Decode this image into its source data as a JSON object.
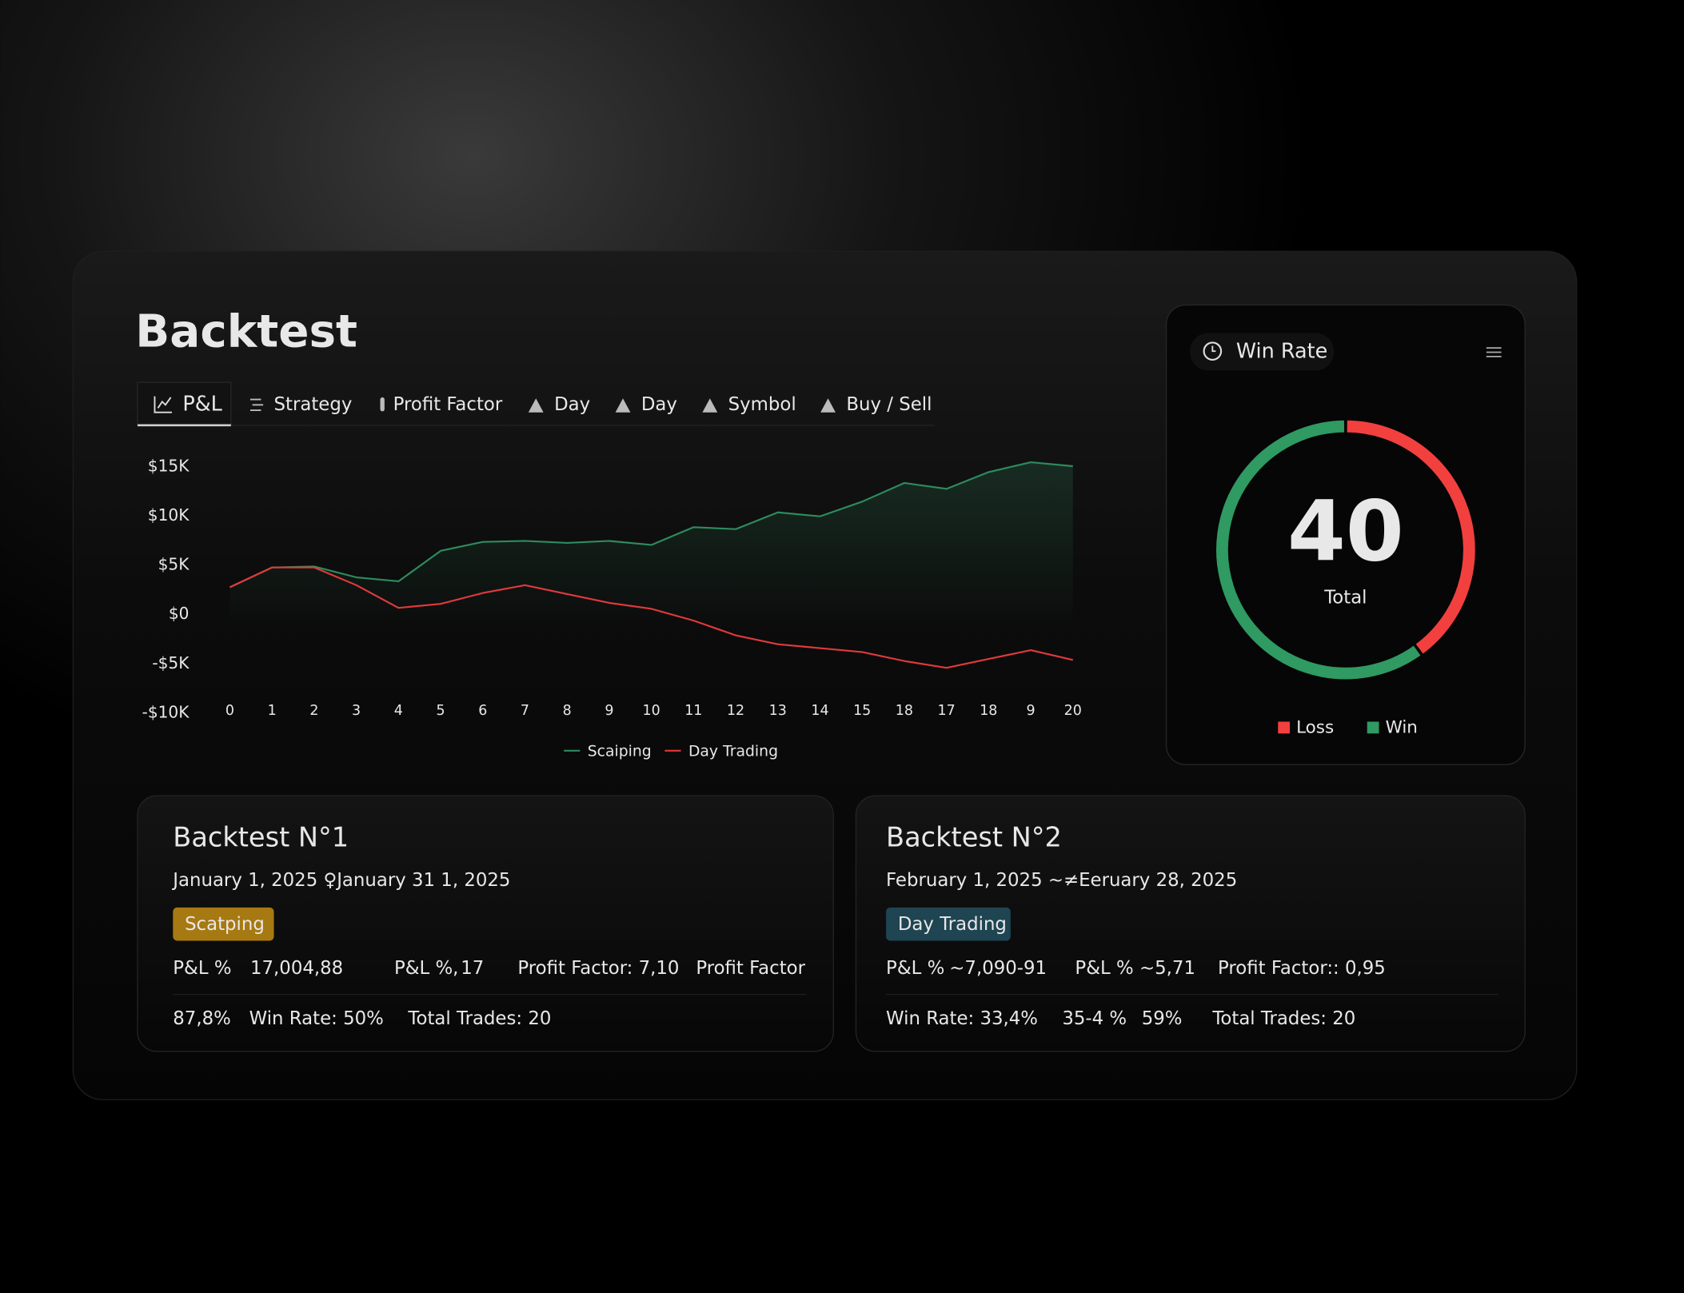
{
  "header": {
    "title": "Backtest"
  },
  "tabs": [
    "P&L",
    "Strategy",
    "Profit Factor",
    "Day",
    "Day",
    "Symbol",
    "Buy / Sell"
  ],
  "chart_data": [
    {
      "type": "line",
      "categories": [
        "0",
        "1",
        "2",
        "3",
        "4",
        "5",
        "6",
        "7",
        "8",
        "9",
        "10",
        "11",
        "12",
        "13",
        "14",
        "15",
        "18",
        "17",
        "18",
        "9",
        "20"
      ],
      "series": [
        {
          "name": "Scaiping",
          "color": "#2e8b5e",
          "values": [
            2800,
            4800,
            4900,
            3800,
            3400,
            6500,
            7400,
            7500,
            7300,
            7500,
            7100,
            8900,
            8700,
            10400,
            10000,
            11500,
            13400,
            12800,
            14500,
            15500,
            15100
          ]
        },
        {
          "name": "Day Trading",
          "color": "#e0393b",
          "values": [
            2800,
            4800,
            4800,
            3000,
            700,
            1100,
            2200,
            3000,
            2100,
            1200,
            600,
            -600,
            -2100,
            -3000,
            -3400,
            -3800,
            -4700,
            -5400,
            -4500,
            -3600,
            -4600
          ]
        }
      ],
      "ylim": [
        -10000,
        15000
      ],
      "yticks": [
        {
          "value": -10000,
          "label": "-$10K"
        },
        {
          "value": -5000,
          "label": "-$5K"
        },
        {
          "value": 0,
          "label": "$0"
        },
        {
          "value": 5000,
          "label": "$5K"
        },
        {
          "value": 10000,
          "label": "$10K"
        },
        {
          "value": 15000,
          "label": "$15K"
        }
      ],
      "grid": false
    },
    {
      "type": "donut",
      "title": "Win Rate",
      "center_value": 40,
      "center_label": "Total",
      "categories": [
        "Loss",
        "Win"
      ],
      "values": [
        40,
        60
      ],
      "colors": [
        "#f2403f",
        "#2f9a62"
      ]
    }
  ],
  "cards": [
    {
      "title": "Backtest N°1",
      "dates": "January 1, 2025 ♀January 31 1, 2025",
      "tag": "Scatping",
      "tag_color": "#a77912",
      "rows": [
        [
          {
            "text": "P&L %"
          },
          {
            "text": "17,004,88",
            "color": "#4fc08a"
          },
          {
            "text": "P&L %,"
          },
          {
            "text": "17",
            "color": "#4fc08a"
          },
          {
            "text": "Profit Factor: 7,10"
          },
          {
            "text": "Profit Factor"
          }
        ],
        [
          {
            "text": "87,8%"
          },
          {
            "text": "Win Rate: 50%"
          },
          {
            "text": "Total Trades:  20"
          }
        ]
      ]
    },
    {
      "title": "Backtest N°2",
      "dates": "February 1, 2025 ~≠Eeruary 28, 2025",
      "tag": "Day Trading",
      "tag_color": "#1f4452",
      "rows": [
        [
          {
            "text": "P&L %"
          },
          {
            "text": "~7,090-91",
            "color": "#f2403f"
          },
          {
            "text": "P&L %"
          },
          {
            "text": "~5,71",
            "color": "#f2403f"
          },
          {
            "text": "Profit Factor:: 0,95"
          }
        ],
        [
          {
            "text": "Win Rate: 33,4%"
          },
          {
            "text": "35-4 %"
          },
          {
            "text": "59%"
          },
          {
            "text": "Total Trades: 20"
          }
        ]
      ]
    }
  ]
}
